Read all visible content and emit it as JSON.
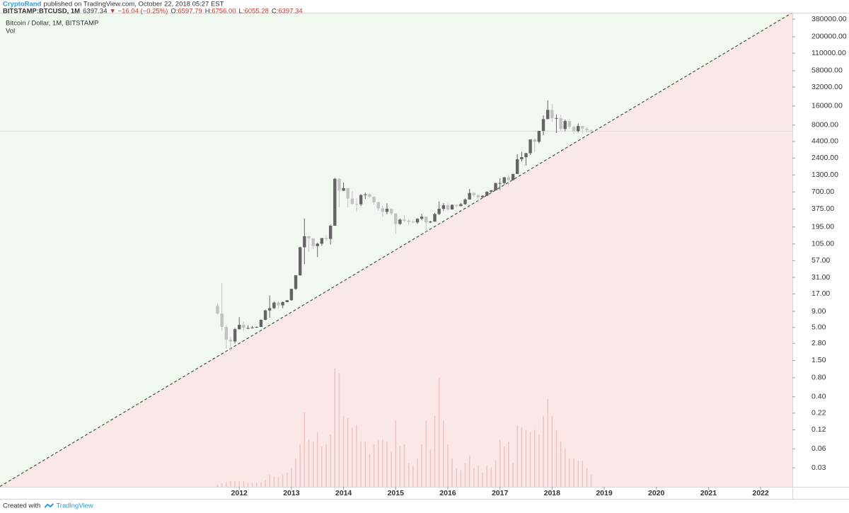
{
  "header": {
    "author": "CryptoRand",
    "published": "published on TradingView.com, October 22, 2018 05:27 EST",
    "symbol": "BITSTAMP:BTCUSD, 1M",
    "price": "6397.34",
    "change": "▼ −16.04 (−0.25%)",
    "ohlc": [
      {
        "label": "O:",
        "value": "6597.79"
      },
      {
        "label": "H:",
        "value": "6756.00"
      },
      {
        "label": "L:",
        "value": "6055.28"
      },
      {
        "label": "C:",
        "value": "6397.34"
      }
    ]
  },
  "footer": {
    "created": "Created with",
    "brand": "TradingView"
  },
  "chart_data": {
    "type": "candlestick",
    "legend_title": "Bitcoin / Dollar, 1M, BITSTAMP",
    "log_y": true,
    "xlim": [
      2007.41,
      2022.61
    ],
    "xticks": [
      2012,
      2013,
      2014,
      2015,
      2016,
      2017,
      2018,
      2019,
      2020,
      2021,
      2022
    ],
    "ylim": [
      0.015,
      480000
    ],
    "yticks": [
      {
        "value": 380000,
        "label": "380000.00"
      },
      {
        "value": 200000,
        "label": "200000.00"
      },
      {
        "value": 110000,
        "label": "110000.00"
      },
      {
        "value": 58000,
        "label": "58000.00"
      },
      {
        "value": 32000,
        "label": "32000.00"
      },
      {
        "value": 16000,
        "label": "16000.00"
      },
      {
        "value": 8000,
        "label": "8000.00"
      },
      {
        "value": 4400,
        "label": "4400.00"
      },
      {
        "value": 2400,
        "label": "2400.00"
      },
      {
        "value": 1300,
        "label": "1300.00"
      },
      {
        "value": 700,
        "label": "700.00"
      },
      {
        "value": 375,
        "label": "375.00"
      },
      {
        "value": 195,
        "label": "195.00"
      },
      {
        "value": 105,
        "label": "105.00"
      },
      {
        "value": 57,
        "label": "57.00"
      },
      {
        "value": 31,
        "label": "31.00"
      },
      {
        "value": 17,
        "label": "17.00"
      },
      {
        "value": 9,
        "label": "9.00"
      },
      {
        "value": 5,
        "label": "5.00"
      },
      {
        "value": 2.8,
        "label": "2.80"
      },
      {
        "value": 1.5,
        "label": "1.50"
      },
      {
        "value": 0.8,
        "label": "0.80"
      },
      {
        "value": 0.4,
        "label": "0.40"
      },
      {
        "value": 0.22,
        "label": "0.22"
      },
      {
        "value": 0.12,
        "label": "0.12"
      },
      {
        "value": 0.06,
        "label": "0.06"
      },
      {
        "value": 0.03,
        "label": "0.03"
      }
    ],
    "up_color": "#646464",
    "down_color": "#c2c2c2",
    "above_color": "#f1f8f0",
    "below_color": "#fae7e7",
    "trend_color": "#3d5a3a",
    "price_line_color": "#dcdcdc",
    "trendline": {
      "x": [
        2012,
        2018.75
      ],
      "y": [
        2.8,
        6000
      ]
    },
    "x": [
      2011.583,
      2011.667,
      2011.75,
      2011.833,
      2011.917,
      2012.0,
      2012.083,
      2012.167,
      2012.25,
      2012.333,
      2012.417,
      2012.5,
      2012.583,
      2012.667,
      2012.75,
      2012.833,
      2012.917,
      2013.0,
      2013.083,
      2013.167,
      2013.25,
      2013.333,
      2013.417,
      2013.5,
      2013.583,
      2013.667,
      2013.75,
      2013.833,
      2013.917,
      2014.0,
      2014.083,
      2014.167,
      2014.25,
      2014.333,
      2014.417,
      2014.5,
      2014.583,
      2014.667,
      2014.75,
      2014.833,
      2014.917,
      2015.0,
      2015.083,
      2015.167,
      2015.25,
      2015.333,
      2015.417,
      2015.5,
      2015.583,
      2015.667,
      2015.75,
      2015.833,
      2015.917,
      2016.0,
      2016.083,
      2016.167,
      2016.25,
      2016.333,
      2016.417,
      2016.5,
      2016.583,
      2016.667,
      2016.75,
      2016.833,
      2016.917,
      2017.0,
      2017.083,
      2017.167,
      2017.25,
      2017.333,
      2017.417,
      2017.5,
      2017.583,
      2017.667,
      2017.75,
      2017.833,
      2017.917,
      2018.0,
      2018.083,
      2018.167,
      2018.25,
      2018.333,
      2018.417,
      2018.5,
      2018.583,
      2018.667,
      2018.75
    ],
    "open": [
      11,
      8.3,
      5.1,
      3.2,
      3.0,
      4.7,
      5.5,
      4.9,
      4.9,
      5.0,
      5.1,
      6.6,
      9.3,
      10.1,
      12.4,
      11.2,
      12.6,
      13.5,
      20.4,
      33.4,
      93,
      139,
      129,
      97,
      106,
      130,
      126,
      204,
      1130,
      732,
      803,
      550,
      450,
      445,
      625,
      640,
      587,
      480,
      386,
      338,
      378,
      320,
      218,
      255,
      245,
      236,
      230,
      263,
      284,
      230,
      237,
      313,
      378,
      430,
      369,
      436,
      416,
      448,
      531,
      673,
      624,
      574,
      608,
      700,
      742,
      966,
      966,
      1189,
      1079,
      1347,
      2300,
      2480,
      2870,
      4730,
      4350,
      6460,
      9950,
      13880,
      10240,
      10320,
      6930,
      9250,
      7500,
      6400,
      7730,
      7020,
      6597.79
    ],
    "high": [
      12,
      25,
      5.5,
      3.6,
      4.9,
      7.3,
      6.2,
      5.4,
      5.3,
      5.2,
      6.7,
      9.6,
      16,
      12.9,
      12.9,
      12.9,
      13.6,
      20.5,
      33.4,
      95,
      266,
      140,
      129,
      110,
      130,
      144,
      213,
      1163,
      1163,
      985,
      800,
      720,
      550,
      640,
      680,
      660,
      600,
      490,
      420,
      460,
      385,
      320,
      265,
      300,
      260,
      255,
      268,
      315,
      284,
      245,
      325,
      495,
      467,
      460,
      445,
      440,
      470,
      550,
      780,
      685,
      625,
      620,
      720,
      750,
      975,
      1150,
      1210,
      1290,
      1345,
      2760,
      3000,
      2910,
      4700,
      4980,
      6470,
      11400,
      19700,
      17200,
      11780,
      11700,
      9760,
      9990,
      7770,
      8500,
      7750,
      7400,
      6756
    ],
    "low": [
      8,
      4.5,
      2.3,
      2.1,
      2.8,
      4.6,
      4.3,
      4.7,
      4.8,
      4.9,
      5.1,
      6.5,
      7.1,
      9.8,
      9.9,
      10.1,
      12.6,
      13.2,
      19.6,
      33,
      50,
      79,
      88,
      65,
      99,
      118,
      103,
      202,
      401,
      720,
      400,
      440,
      340,
      420,
      540,
      560,
      440,
      350,
      280,
      310,
      300,
      152,
      210,
      235,
      213,
      225,
      217,
      250,
      162,
      224,
      235,
      300,
      348,
      355,
      366,
      393,
      414,
      436,
      526,
      580,
      470,
      570,
      605,
      690,
      740,
      750,
      915,
      880,
      1060,
      1340,
      2120,
      1830,
      2700,
      2970,
      4100,
      5500,
      9900,
      9000,
      6000,
      6560,
      6430,
      7030,
      5750,
      6070,
      5880,
      6100,
      6055.28
    ],
    "close": [
      8.3,
      5.1,
      3.2,
      3.0,
      4.7,
      5.5,
      4.9,
      4.9,
      5.0,
      5.1,
      6.6,
      9.3,
      10.1,
      12.4,
      11.2,
      12.6,
      13.5,
      20.4,
      33.4,
      93,
      139,
      129,
      97,
      106,
      130,
      126,
      204,
      1130,
      732,
      803,
      550,
      450,
      445,
      625,
      640,
      587,
      480,
      386,
      338,
      378,
      320,
      218,
      255,
      245,
      236,
      230,
      263,
      284,
      230,
      237,
      313,
      378,
      430,
      369,
      436,
      416,
      448,
      531,
      673,
      624,
      574,
      608,
      700,
      742,
      966,
      966,
      1189,
      1079,
      1347,
      2300,
      2480,
      2870,
      4730,
      4350,
      6460,
      9950,
      13880,
      10240,
      10320,
      6930,
      9250,
      7500,
      6400,
      7730,
      7020,
      6630,
      6397.34
    ],
    "volume": {
      "name": "Vol",
      "color": "#eec3c3",
      "vlim": [
        0,
        1000
      ],
      "values": [
        5,
        8,
        10,
        12,
        12,
        12,
        12,
        8,
        8,
        8,
        10,
        15,
        25,
        22,
        20,
        25,
        30,
        40,
        60,
        90,
        157,
        100,
        95,
        115,
        85,
        90,
        110,
        250,
        240,
        150,
        145,
        125,
        130,
        95,
        95,
        70,
        90,
        100,
        100,
        95,
        75,
        140,
        85,
        90,
        50,
        45,
        60,
        90,
        140,
        80,
        150,
        230,
        140,
        90,
        60,
        40,
        35,
        50,
        65,
        40,
        45,
        30,
        45,
        40,
        55,
        100,
        85,
        95,
        50,
        130,
        125,
        120,
        115,
        120,
        110,
        150,
        185,
        150,
        120,
        95,
        80,
        60,
        60,
        55,
        55,
        40,
        25
      ]
    }
  }
}
